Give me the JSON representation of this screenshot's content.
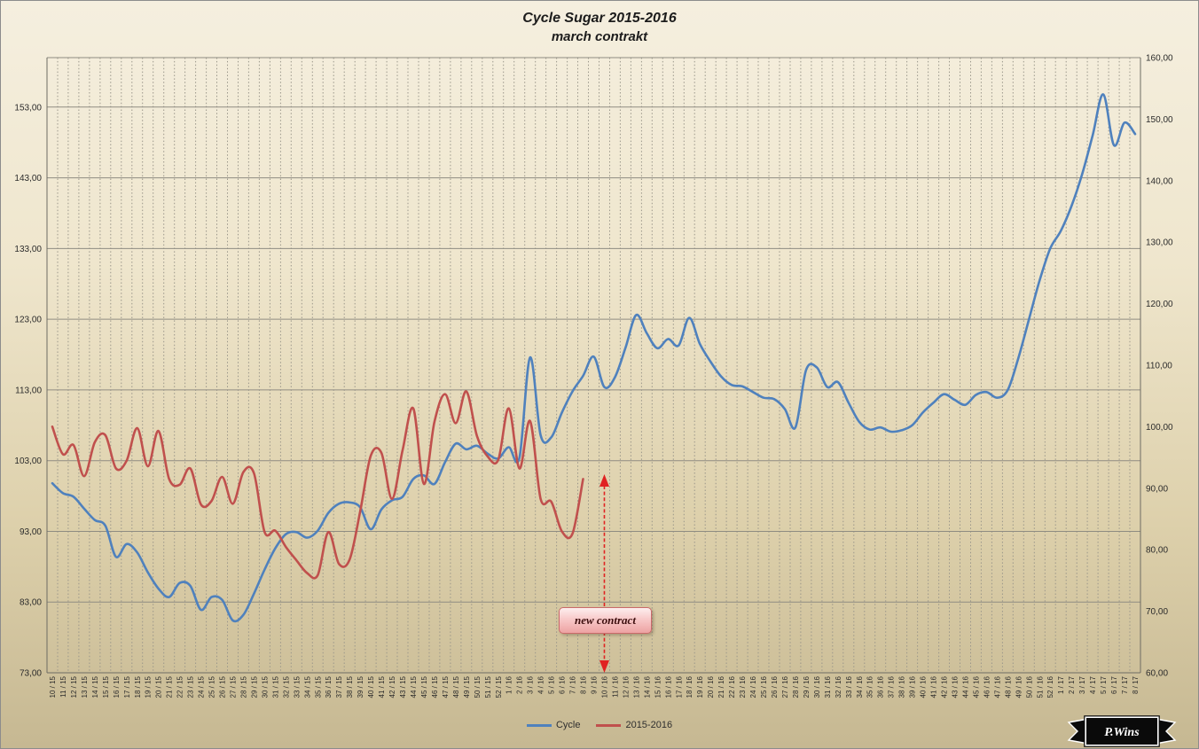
{
  "chart_data": {
    "type": "line",
    "title": "Cycle Sugar 2015-2016",
    "subtitle": "march contrakt",
    "legend_position": "bottom",
    "grid": {
      "horizontal": true,
      "vertical_dashed_per_category": true
    },
    "categories": [
      "10 / 15",
      "11 / 15",
      "12 / 15",
      "13 / 15",
      "14 / 15",
      "15 / 15",
      "16 / 15",
      "17 / 15",
      "18 / 15",
      "19 / 15",
      "20 / 15",
      "21 / 15",
      "22 / 15",
      "23 / 15",
      "24 / 15",
      "25 / 15",
      "26 / 15",
      "27 / 15",
      "28 / 15",
      "29 / 15",
      "30 / 15",
      "31 / 15",
      "32 / 15",
      "33 / 15",
      "34 / 15",
      "35 / 15",
      "36 / 15",
      "37 / 15",
      "38 / 15",
      "39 / 15",
      "40 / 15",
      "41 / 15",
      "42 / 15",
      "43 / 15",
      "44 / 15",
      "45 / 15",
      "46 / 15",
      "47 / 15",
      "48 / 15",
      "49 / 15",
      "50 / 15",
      "51 / 15",
      "52 / 15",
      "1 / 16",
      "2 / 16",
      "3 / 16",
      "4 / 16",
      "5 / 16",
      "6 / 16",
      "7 / 16",
      "8 / 16",
      "9 / 16",
      "10 / 16",
      "11 / 16",
      "12 / 16",
      "13 / 16",
      "14 / 16",
      "15 / 16",
      "16 / 16",
      "17 / 16",
      "18 / 16",
      "19 / 16",
      "20 / 16",
      "21 / 16",
      "22 / 16",
      "23 / 16",
      "24 / 16",
      "25 / 16",
      "26 / 16",
      "27 / 16",
      "28 / 16",
      "29 / 16",
      "30 / 16",
      "31 / 16",
      "32 / 16",
      "33 / 16",
      "34 / 16",
      "35 / 16",
      "36 / 16",
      "37 / 16",
      "38 / 16",
      "39 / 16",
      "40 / 16",
      "41 / 16",
      "42 / 16",
      "43 / 16",
      "44 / 16",
      "45 / 16",
      "46 / 16",
      "47 / 16",
      "48 / 16",
      "49 / 16",
      "50 / 16",
      "51 / 16",
      "52 / 16",
      "1 / 17",
      "2 / 17",
      "3 / 17",
      "4 / 17",
      "5 / 17",
      "6 / 17",
      "7 / 17",
      "8 / 17"
    ],
    "series": [
      {
        "name": "Cycle",
        "color": "#4f81bd",
        "axis": "left",
        "values": [
          99.8,
          98.4,
          97.9,
          96.2,
          94.6,
          93.8,
          89.4,
          91.2,
          90.0,
          87.2,
          84.9,
          83.7,
          85.7,
          85.3,
          81.9,
          83.7,
          83.3,
          80.4,
          81.2,
          84.2,
          87.6,
          90.6,
          92.6,
          92.9,
          92.1,
          93.1,
          95.6,
          96.9,
          97.1,
          96.4,
          93.3,
          96.1,
          97.4,
          97.9,
          100.4,
          100.9,
          99.7,
          102.8,
          105.4,
          104.6,
          105.1,
          104.0,
          103.3,
          104.9,
          103.4,
          117.6,
          106.6,
          106.3,
          109.8,
          112.8,
          115.0,
          117.7,
          113.4,
          114.8,
          119.0,
          123.6,
          121.0,
          118.9,
          120.2,
          119.3,
          123.2,
          119.5,
          117.0,
          114.9,
          113.7,
          113.5,
          112.7,
          111.9,
          111.7,
          110.3,
          107.7,
          115.8,
          116.2,
          113.4,
          114.1,
          111.2,
          108.5,
          107.4,
          107.7,
          107.1,
          107.3,
          108.0,
          109.8,
          111.2,
          112.4,
          111.6,
          110.9,
          112.3,
          112.7,
          111.9,
          113.0,
          117.5,
          123.0,
          128.5,
          133.0,
          135.5,
          139.0,
          143.5,
          149.0,
          154.8,
          147.6,
          150.8,
          149.2
        ]
      },
      {
        "name": "2015-2016",
        "color": "#c0504d",
        "axis": "left",
        "values": [
          107.8,
          103.9,
          105.2,
          100.8,
          105.6,
          106.6,
          101.9,
          103.0,
          107.6,
          102.2,
          107.2,
          100.4,
          99.6,
          101.9,
          96.8,
          97.3,
          100.7,
          96.9,
          101.4,
          101.2,
          92.9,
          93.1,
          90.8,
          88.9,
          87.1,
          86.8,
          92.9,
          88.4,
          89.0,
          95.8,
          103.7,
          104.1,
          97.6,
          104.5,
          110.4,
          99.7,
          108.5,
          112.4,
          108.3,
          112.8,
          106.5,
          103.6,
          103.1,
          110.4,
          101.9,
          108.6,
          97.6,
          97.2,
          93.0,
          92.7,
          100.4
        ]
      }
    ],
    "left_axis": {
      "min": 73,
      "max": 160,
      "tick_values": [
        73,
        83,
        93,
        103,
        113,
        123,
        133,
        143,
        153
      ],
      "tick_labels": [
        "73,00",
        "83,00",
        "93,00",
        "103,00",
        "113,00",
        "123,00",
        "133,00",
        "143,00",
        "153,00"
      ]
    },
    "right_axis": {
      "min": 60,
      "max": 160,
      "tick_values": [
        60,
        70,
        80,
        90,
        100,
        110,
        120,
        130,
        140,
        150,
        160
      ],
      "tick_labels": [
        "60,00",
        "70,00",
        "80,00",
        "90,00",
        "100,00",
        "110,00",
        "120,00",
        "130,00",
        "140,00",
        "150,00",
        "160,00"
      ]
    }
  },
  "annotation": {
    "label": "new contract",
    "arrow_category": "10 / 16"
  },
  "logo": {
    "text": "P.Wins"
  }
}
